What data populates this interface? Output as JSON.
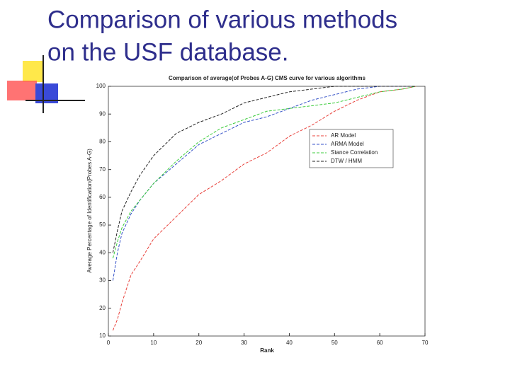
{
  "slide": {
    "title_lines": [
      "Comparison of various methods",
      "on the USF database."
    ]
  },
  "chart_data": {
    "type": "line",
    "title": "Comparison of average(of Probes A-G) CMS curve for various algorithms",
    "x_label": "Rank",
    "y_label": "Average Percentage of Identification(Probes A-G)",
    "x": [
      1,
      2,
      3,
      5,
      7,
      10,
      15,
      20,
      25,
      30,
      35,
      40,
      45,
      50,
      55,
      60,
      65,
      68
    ],
    "series": [
      {
        "name": "AR Model",
        "color": "#e8403a",
        "values": [
          12,
          16,
          22,
          32,
          37,
          45,
          53,
          61,
          66,
          72,
          76,
          82,
          86,
          91,
          95,
          98,
          99,
          100
        ]
      },
      {
        "name": "ARMA Model",
        "color": "#3552c8",
        "values": [
          30,
          40,
          47,
          54,
          59,
          65,
          72,
          79,
          83,
          87,
          89,
          92,
          95,
          97,
          99,
          100,
          100,
          100
        ]
      },
      {
        "name": "Stance Correlation",
        "color": "#3ccc3c",
        "values": [
          38,
          44,
          49,
          55,
          59,
          65,
          73,
          80,
          85,
          88,
          91,
          92,
          93,
          94,
          96,
          98,
          99,
          100
        ]
      },
      {
        "name": "DTW / HMM",
        "color": "#222222",
        "values": [
          40,
          48,
          55,
          62,
          68,
          75,
          83,
          87,
          90,
          94,
          96,
          98,
          99,
          100,
          100,
          100,
          100,
          100
        ]
      }
    ],
    "xlim": [
      0,
      70
    ],
    "xticks": [
      0,
      10,
      20,
      30,
      40,
      50,
      60,
      70
    ],
    "ylim": [
      10,
      100
    ],
    "yticks": [
      10,
      20,
      30,
      40,
      50,
      60,
      70,
      80,
      90,
      100
    ],
    "grid": false,
    "legend": "upper-right"
  }
}
